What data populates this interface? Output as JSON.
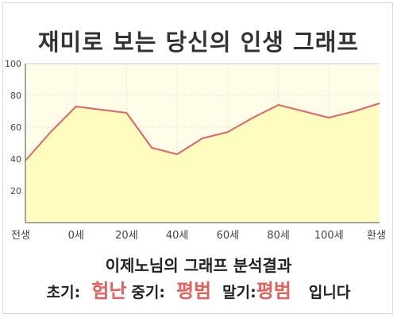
{
  "chart_data": {
    "type": "area",
    "title": "재미로 보는 당신의 인생 그래프",
    "x_labels": [
      "전생",
      "0세",
      "20세",
      "40세",
      "60세",
      "80세",
      "100세",
      "환생"
    ],
    "ylim": [
      0,
      100
    ],
    "y_ticks": [
      20,
      40,
      60,
      80,
      100
    ],
    "series": [
      {
        "values": [
          39,
          57,
          73,
          71,
          69,
          47,
          43,
          53,
          57,
          66,
          74,
          70,
          66,
          70,
          75
        ],
        "color": "#e06464",
        "fill": "#fffcc0"
      }
    ],
    "plot_background": "#fffde8",
    "grid": true
  },
  "result": {
    "heading": "이제노님의 그래프 분석결과",
    "early_label": "초기:",
    "early_value": "험난",
    "mid_label": "중기:",
    "mid_value": "평범",
    "late_label": "말기:",
    "late_value": "평범",
    "suffix": "입니다"
  }
}
